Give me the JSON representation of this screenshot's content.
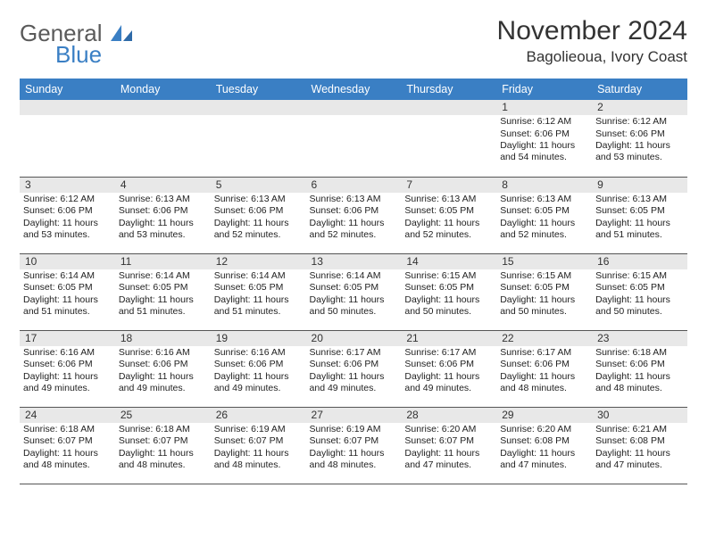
{
  "brand": {
    "part1": "General",
    "part2": "Blue"
  },
  "title": "November 2024",
  "location": "Bagolieoua, Ivory Coast",
  "colors": {
    "header_bg": "#3a7fc4",
    "header_fg": "#ffffff",
    "daynum_bg": "#e8e8e8",
    "border": "#555555",
    "background": "#ffffff",
    "text": "#222222",
    "logo_gray": "#5a5a5a",
    "logo_blue": "#3a7fc4"
  },
  "fonts": {
    "title_size_pt": 22,
    "location_size_pt": 13,
    "dayhead_size_pt": 9,
    "body_size_pt": 8
  },
  "day_headers": [
    "Sunday",
    "Monday",
    "Tuesday",
    "Wednesday",
    "Thursday",
    "Friday",
    "Saturday"
  ],
  "weeks": [
    [
      null,
      null,
      null,
      null,
      null,
      {
        "n": "1",
        "sunrise": "Sunrise: 6:12 AM",
        "sunset": "Sunset: 6:06 PM",
        "daylight": "Daylight: 11 hours and 54 minutes."
      },
      {
        "n": "2",
        "sunrise": "Sunrise: 6:12 AM",
        "sunset": "Sunset: 6:06 PM",
        "daylight": "Daylight: 11 hours and 53 minutes."
      }
    ],
    [
      {
        "n": "3",
        "sunrise": "Sunrise: 6:12 AM",
        "sunset": "Sunset: 6:06 PM",
        "daylight": "Daylight: 11 hours and 53 minutes."
      },
      {
        "n": "4",
        "sunrise": "Sunrise: 6:13 AM",
        "sunset": "Sunset: 6:06 PM",
        "daylight": "Daylight: 11 hours and 53 minutes."
      },
      {
        "n": "5",
        "sunrise": "Sunrise: 6:13 AM",
        "sunset": "Sunset: 6:06 PM",
        "daylight": "Daylight: 11 hours and 52 minutes."
      },
      {
        "n": "6",
        "sunrise": "Sunrise: 6:13 AM",
        "sunset": "Sunset: 6:06 PM",
        "daylight": "Daylight: 11 hours and 52 minutes."
      },
      {
        "n": "7",
        "sunrise": "Sunrise: 6:13 AM",
        "sunset": "Sunset: 6:05 PM",
        "daylight": "Daylight: 11 hours and 52 minutes."
      },
      {
        "n": "8",
        "sunrise": "Sunrise: 6:13 AM",
        "sunset": "Sunset: 6:05 PM",
        "daylight": "Daylight: 11 hours and 52 minutes."
      },
      {
        "n": "9",
        "sunrise": "Sunrise: 6:13 AM",
        "sunset": "Sunset: 6:05 PM",
        "daylight": "Daylight: 11 hours and 51 minutes."
      }
    ],
    [
      {
        "n": "10",
        "sunrise": "Sunrise: 6:14 AM",
        "sunset": "Sunset: 6:05 PM",
        "daylight": "Daylight: 11 hours and 51 minutes."
      },
      {
        "n": "11",
        "sunrise": "Sunrise: 6:14 AM",
        "sunset": "Sunset: 6:05 PM",
        "daylight": "Daylight: 11 hours and 51 minutes."
      },
      {
        "n": "12",
        "sunrise": "Sunrise: 6:14 AM",
        "sunset": "Sunset: 6:05 PM",
        "daylight": "Daylight: 11 hours and 51 minutes."
      },
      {
        "n": "13",
        "sunrise": "Sunrise: 6:14 AM",
        "sunset": "Sunset: 6:05 PM",
        "daylight": "Daylight: 11 hours and 50 minutes."
      },
      {
        "n": "14",
        "sunrise": "Sunrise: 6:15 AM",
        "sunset": "Sunset: 6:05 PM",
        "daylight": "Daylight: 11 hours and 50 minutes."
      },
      {
        "n": "15",
        "sunrise": "Sunrise: 6:15 AM",
        "sunset": "Sunset: 6:05 PM",
        "daylight": "Daylight: 11 hours and 50 minutes."
      },
      {
        "n": "16",
        "sunrise": "Sunrise: 6:15 AM",
        "sunset": "Sunset: 6:05 PM",
        "daylight": "Daylight: 11 hours and 50 minutes."
      }
    ],
    [
      {
        "n": "17",
        "sunrise": "Sunrise: 6:16 AM",
        "sunset": "Sunset: 6:06 PM",
        "daylight": "Daylight: 11 hours and 49 minutes."
      },
      {
        "n": "18",
        "sunrise": "Sunrise: 6:16 AM",
        "sunset": "Sunset: 6:06 PM",
        "daylight": "Daylight: 11 hours and 49 minutes."
      },
      {
        "n": "19",
        "sunrise": "Sunrise: 6:16 AM",
        "sunset": "Sunset: 6:06 PM",
        "daylight": "Daylight: 11 hours and 49 minutes."
      },
      {
        "n": "20",
        "sunrise": "Sunrise: 6:17 AM",
        "sunset": "Sunset: 6:06 PM",
        "daylight": "Daylight: 11 hours and 49 minutes."
      },
      {
        "n": "21",
        "sunrise": "Sunrise: 6:17 AM",
        "sunset": "Sunset: 6:06 PM",
        "daylight": "Daylight: 11 hours and 49 minutes."
      },
      {
        "n": "22",
        "sunrise": "Sunrise: 6:17 AM",
        "sunset": "Sunset: 6:06 PM",
        "daylight": "Daylight: 11 hours and 48 minutes."
      },
      {
        "n": "23",
        "sunrise": "Sunrise: 6:18 AM",
        "sunset": "Sunset: 6:06 PM",
        "daylight": "Daylight: 11 hours and 48 minutes."
      }
    ],
    [
      {
        "n": "24",
        "sunrise": "Sunrise: 6:18 AM",
        "sunset": "Sunset: 6:07 PM",
        "daylight": "Daylight: 11 hours and 48 minutes."
      },
      {
        "n": "25",
        "sunrise": "Sunrise: 6:18 AM",
        "sunset": "Sunset: 6:07 PM",
        "daylight": "Daylight: 11 hours and 48 minutes."
      },
      {
        "n": "26",
        "sunrise": "Sunrise: 6:19 AM",
        "sunset": "Sunset: 6:07 PM",
        "daylight": "Daylight: 11 hours and 48 minutes."
      },
      {
        "n": "27",
        "sunrise": "Sunrise: 6:19 AM",
        "sunset": "Sunset: 6:07 PM",
        "daylight": "Daylight: 11 hours and 48 minutes."
      },
      {
        "n": "28",
        "sunrise": "Sunrise: 6:20 AM",
        "sunset": "Sunset: 6:07 PM",
        "daylight": "Daylight: 11 hours and 47 minutes."
      },
      {
        "n": "29",
        "sunrise": "Sunrise: 6:20 AM",
        "sunset": "Sunset: 6:08 PM",
        "daylight": "Daylight: 11 hours and 47 minutes."
      },
      {
        "n": "30",
        "sunrise": "Sunrise: 6:21 AM",
        "sunset": "Sunset: 6:08 PM",
        "daylight": "Daylight: 11 hours and 47 minutes."
      }
    ]
  ]
}
